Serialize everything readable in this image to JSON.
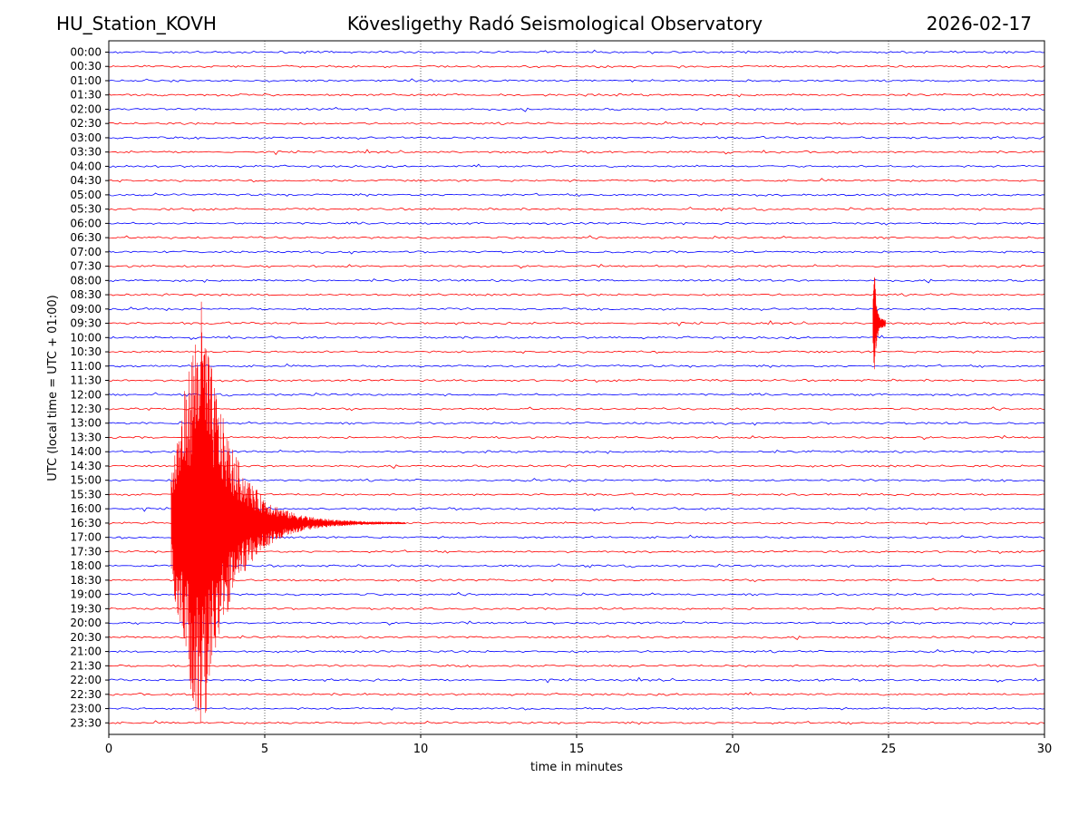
{
  "header": {
    "station": "HU_Station_KOVH",
    "observatory": "Kövesligethy Radó Seismological Observatory",
    "date": "2026-02-17"
  },
  "chart_data": {
    "type": "line",
    "title": "Kövesligethy Radó Seismological Observatory",
    "xlabel": "time in minutes",
    "ylabel": "UTC (local time = UTC + 01:00)",
    "xlim": [
      0,
      30
    ],
    "x_ticks": [
      0,
      5,
      10,
      15,
      20,
      25,
      30
    ],
    "x_grid": true,
    "row_labels": [
      "00:00",
      "00:30",
      "01:00",
      "01:30",
      "02:00",
      "02:30",
      "03:00",
      "03:30",
      "04:00",
      "04:30",
      "05:00",
      "05:30",
      "06:00",
      "06:30",
      "07:00",
      "07:30",
      "08:00",
      "08:30",
      "09:00",
      "09:30",
      "10:00",
      "10:30",
      "11:00",
      "11:30",
      "12:00",
      "12:30",
      "13:00",
      "13:30",
      "14:00",
      "14:30",
      "15:00",
      "15:30",
      "16:00",
      "16:30",
      "17:00",
      "17:30",
      "18:00",
      "18:30",
      "19:00",
      "19:30",
      "20:00",
      "20:30",
      "21:00",
      "21:30",
      "22:00",
      "22:30",
      "23:00",
      "23:30"
    ],
    "trace_colors": [
      "#0000ff",
      "#ff0000"
    ],
    "events": [
      {
        "row": "16:30",
        "onset_min": 2.0,
        "peak_min": 2.9,
        "decay_end_min": 9.5,
        "color": "#ff0000"
      },
      {
        "row": "09:30",
        "onset_min": 24.5,
        "peak_min": 24.55,
        "decay_end_min": 24.9,
        "color": "#ff0000"
      }
    ]
  }
}
